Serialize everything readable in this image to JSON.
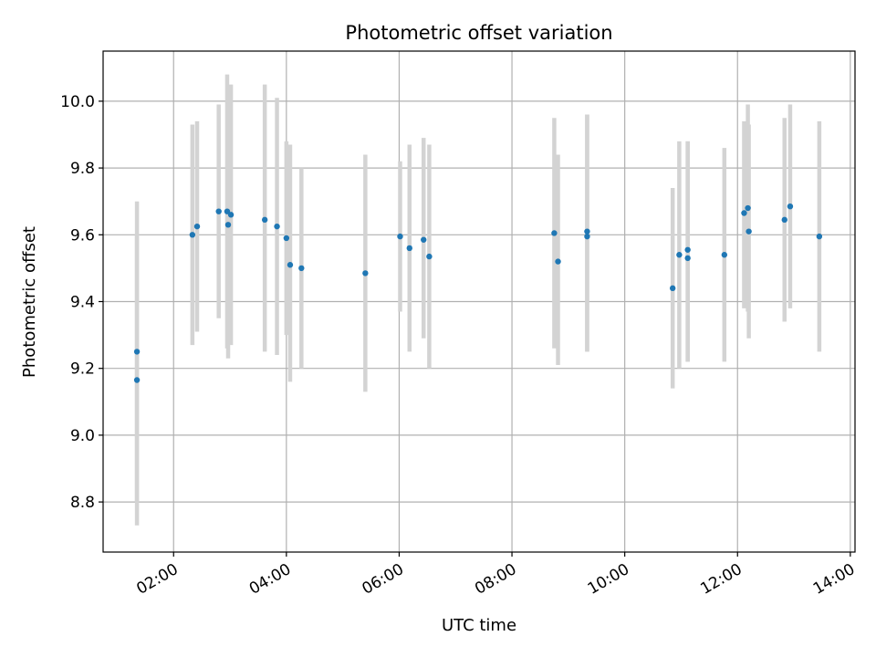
{
  "chart_data": {
    "type": "scatter",
    "title": "Photometric offset variation",
    "xlabel": "UTC time",
    "ylabel": "Photometric offset",
    "x_ticks": [
      "02:00",
      "04:00",
      "06:00",
      "08:00",
      "10:00",
      "12:00",
      "14:00"
    ],
    "y_ticks": [
      "8.8",
      "9.0",
      "9.2",
      "9.4",
      "9.6",
      "9.8",
      "10.0"
    ],
    "xlim": [
      "00:45",
      "14:05"
    ],
    "ylim": [
      8.65,
      10.15
    ],
    "grid": true,
    "colors": {
      "point": "#1f77b4",
      "errorbar": "#d3d3d3",
      "grid": "#b0b0b0"
    },
    "points": [
      {
        "x": "01:21",
        "y": 9.25,
        "lo": 8.8,
        "hi": 9.7
      },
      {
        "x": "01:21",
        "y": 9.165,
        "lo": 8.73,
        "hi": 9.6
      },
      {
        "x": "02:20",
        "y": 9.6,
        "lo": 9.27,
        "hi": 9.93
      },
      {
        "x": "02:25",
        "y": 9.625,
        "lo": 9.31,
        "hi": 9.94
      },
      {
        "x": "02:48",
        "y": 9.67,
        "lo": 9.35,
        "hi": 9.99
      },
      {
        "x": "02:57",
        "y": 9.67,
        "lo": 9.26,
        "hi": 10.08
      },
      {
        "x": "02:58",
        "y": 9.63,
        "lo": 9.23,
        "hi": 10.03
      },
      {
        "x": "03:01",
        "y": 9.66,
        "lo": 9.27,
        "hi": 10.05
      },
      {
        "x": "03:37",
        "y": 9.645,
        "lo": 9.25,
        "hi": 10.05
      },
      {
        "x": "03:50",
        "y": 9.625,
        "lo": 9.24,
        "hi": 10.01
      },
      {
        "x": "04:00",
        "y": 9.59,
        "lo": 9.3,
        "hi": 9.88
      },
      {
        "x": "04:04",
        "y": 9.51,
        "lo": 9.16,
        "hi": 9.87
      },
      {
        "x": "04:16",
        "y": 9.5,
        "lo": 9.2,
        "hi": 9.8
      },
      {
        "x": "05:24",
        "y": 9.485,
        "lo": 9.13,
        "hi": 9.84
      },
      {
        "x": "06:01",
        "y": 9.595,
        "lo": 9.37,
        "hi": 9.82
      },
      {
        "x": "06:11",
        "y": 9.56,
        "lo": 9.25,
        "hi": 9.87
      },
      {
        "x": "06:26",
        "y": 9.585,
        "lo": 9.29,
        "hi": 9.89
      },
      {
        "x": "06:32",
        "y": 9.535,
        "lo": 9.2,
        "hi": 9.87
      },
      {
        "x": "08:45",
        "y": 9.605,
        "lo": 9.26,
        "hi": 9.95
      },
      {
        "x": "08:49",
        "y": 9.52,
        "lo": 9.21,
        "hi": 9.84
      },
      {
        "x": "09:20",
        "y": 9.61,
        "lo": 9.25,
        "hi": 9.96
      },
      {
        "x": "09:20",
        "y": 9.595,
        "lo": 9.25,
        "hi": 9.96
      },
      {
        "x": "10:51",
        "y": 9.44,
        "lo": 9.14,
        "hi": 9.74
      },
      {
        "x": "10:58",
        "y": 9.54,
        "lo": 9.2,
        "hi": 9.88
      },
      {
        "x": "11:07",
        "y": 9.555,
        "lo": 9.22,
        "hi": 9.88
      },
      {
        "x": "11:07",
        "y": 9.53,
        "lo": 9.22,
        "hi": 9.88
      },
      {
        "x": "11:46",
        "y": 9.54,
        "lo": 9.22,
        "hi": 9.86
      },
      {
        "x": "12:07",
        "y": 9.665,
        "lo": 9.38,
        "hi": 9.94
      },
      {
        "x": "12:11",
        "y": 9.68,
        "lo": 9.37,
        "hi": 9.99
      },
      {
        "x": "12:12",
        "y": 9.61,
        "lo": 9.29,
        "hi": 9.93
      },
      {
        "x": "12:50",
        "y": 9.645,
        "lo": 9.34,
        "hi": 9.95
      },
      {
        "x": "12:56",
        "y": 9.685,
        "lo": 9.38,
        "hi": 9.99
      },
      {
        "x": "13:27",
        "y": 9.595,
        "lo": 9.25,
        "hi": 9.94
      }
    ]
  }
}
